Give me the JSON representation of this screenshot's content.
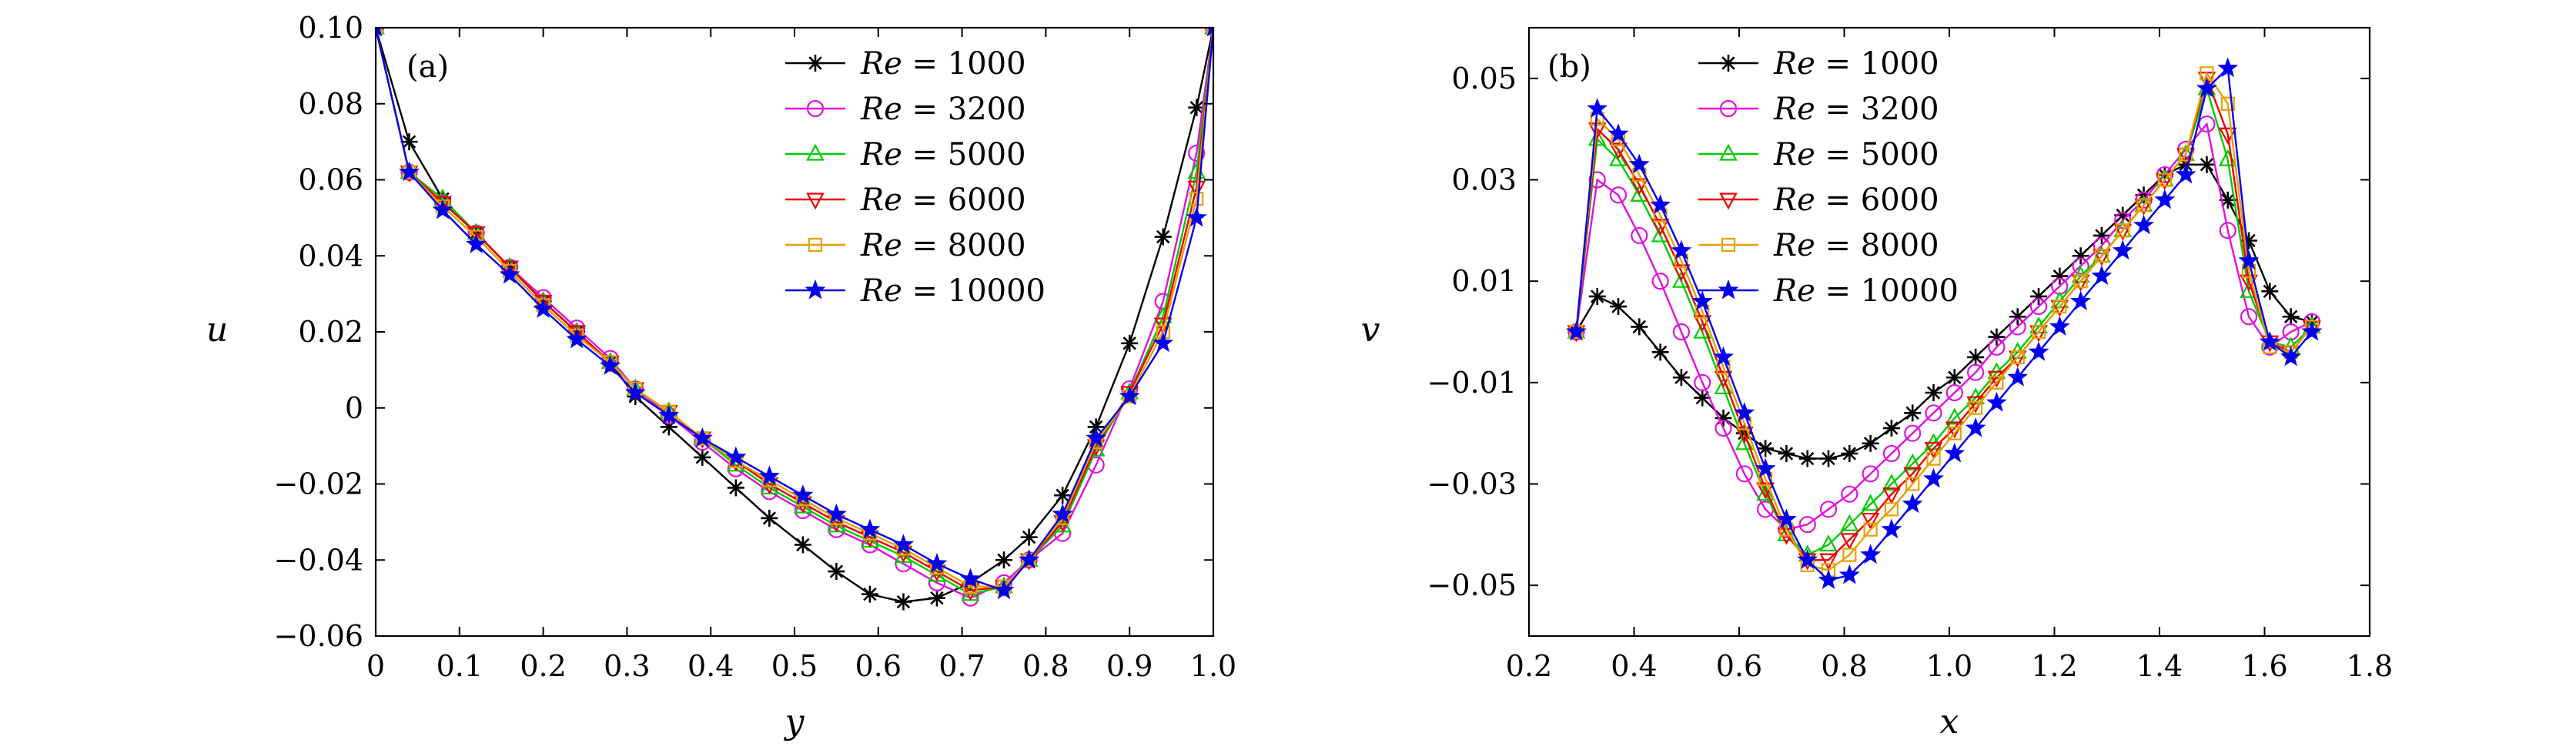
{
  "chart_data": [
    {
      "panel_label": "(a)",
      "type": "line",
      "xlabel": "y",
      "ylabel": "u",
      "xlim": [
        0,
        1.0
      ],
      "ylim": [
        -0.06,
        0.1
      ],
      "xticks": [
        0,
        0.1,
        0.2,
        0.3,
        0.4,
        0.5,
        0.6,
        0.7,
        0.8,
        0.9,
        1.0
      ],
      "xtick_labels": [
        "0",
        "0.1",
        "0.2",
        "0.3",
        "0.4",
        "0.5",
        "0.6",
        "0.7",
        "0.8",
        "0.9",
        "1.0"
      ],
      "yticks": [
        -0.06,
        -0.04,
        -0.02,
        0,
        0.02,
        0.04,
        0.06,
        0.08,
        0.1
      ],
      "ytick_labels": [
        "−0.06",
        "−0.04",
        "−0.02",
        "0",
        "0.02",
        "0.04",
        "0.06",
        "0.08",
        "0.10"
      ],
      "legend_position": "top-right",
      "series": [
        {
          "name": "Re = 1000",
          "color": "#000000",
          "marker": "asterisk",
          "x": [
            0,
            0.04,
            0.08,
            0.12,
            0.16,
            0.2,
            0.24,
            0.28,
            0.31,
            0.35,
            0.39,
            0.43,
            0.47,
            0.51,
            0.55,
            0.59,
            0.63,
            0.67,
            0.71,
            0.75,
            0.78,
            0.82,
            0.86,
            0.9,
            0.94,
            0.98,
            1.0
          ],
          "y": [
            0.1,
            0.07,
            0.055,
            0.046,
            0.037,
            0.028,
            0.02,
            0.012,
            0.003,
            -0.005,
            -0.013,
            -0.021,
            -0.029,
            -0.036,
            -0.043,
            -0.049,
            -0.051,
            -0.05,
            -0.046,
            -0.04,
            -0.034,
            -0.023,
            -0.005,
            0.017,
            0.045,
            0.079,
            0.1
          ]
        },
        {
          "name": "Re = 3200",
          "color": "#e010e0",
          "marker": "circle",
          "x": [
            0,
            0.04,
            0.08,
            0.12,
            0.16,
            0.2,
            0.24,
            0.28,
            0.31,
            0.35,
            0.39,
            0.43,
            0.47,
            0.51,
            0.55,
            0.59,
            0.63,
            0.67,
            0.71,
            0.75,
            0.78,
            0.82,
            0.86,
            0.9,
            0.94,
            0.98,
            1.0
          ],
          "y": [
            0.1,
            0.062,
            0.054,
            0.046,
            0.037,
            0.029,
            0.021,
            0.013,
            0.005,
            -0.002,
            -0.009,
            -0.016,
            -0.022,
            -0.027,
            -0.032,
            -0.036,
            -0.041,
            -0.046,
            -0.05,
            -0.046,
            -0.04,
            -0.033,
            -0.015,
            0.005,
            0.028,
            0.067,
            0.1
          ]
        },
        {
          "name": "Re = 5000",
          "color": "#00cc00",
          "marker": "triangle-up",
          "x": [
            0,
            0.04,
            0.08,
            0.12,
            0.16,
            0.2,
            0.24,
            0.28,
            0.31,
            0.35,
            0.39,
            0.43,
            0.47,
            0.51,
            0.55,
            0.59,
            0.63,
            0.67,
            0.71,
            0.75,
            0.78,
            0.82,
            0.86,
            0.9,
            0.94,
            0.98,
            1.0
          ],
          "y": [
            0.1,
            0.062,
            0.055,
            0.046,
            0.037,
            0.028,
            0.02,
            0.012,
            0.005,
            -0.001,
            -0.008,
            -0.015,
            -0.021,
            -0.026,
            -0.031,
            -0.035,
            -0.039,
            -0.044,
            -0.049,
            -0.047,
            -0.04,
            -0.031,
            -0.011,
            0.004,
            0.024,
            0.062,
            0.1
          ]
        },
        {
          "name": "Re = 6000",
          "color": "#ee0000",
          "marker": "triangle-down",
          "x": [
            0,
            0.04,
            0.08,
            0.12,
            0.16,
            0.2,
            0.24,
            0.28,
            0.31,
            0.35,
            0.39,
            0.43,
            0.47,
            0.51,
            0.55,
            0.59,
            0.63,
            0.67,
            0.71,
            0.75,
            0.78,
            0.82,
            0.86,
            0.9,
            0.94,
            0.98,
            1.0
          ],
          "y": [
            0.1,
            0.062,
            0.054,
            0.046,
            0.037,
            0.028,
            0.02,
            0.012,
            0.005,
            -0.001,
            -0.008,
            -0.014,
            -0.02,
            -0.025,
            -0.03,
            -0.034,
            -0.038,
            -0.043,
            -0.048,
            -0.047,
            -0.04,
            -0.03,
            -0.01,
            0.004,
            0.022,
            0.058,
            0.1
          ]
        },
        {
          "name": "Re = 8000",
          "color": "#e8a000",
          "marker": "square",
          "x": [
            0,
            0.04,
            0.08,
            0.12,
            0.16,
            0.2,
            0.24,
            0.28,
            0.31,
            0.35,
            0.39,
            0.43,
            0.47,
            0.51,
            0.55,
            0.59,
            0.63,
            0.67,
            0.71,
            0.75,
            0.78,
            0.82,
            0.86,
            0.9,
            0.94,
            0.98,
            1.0
          ],
          "y": [
            0.1,
            0.062,
            0.053,
            0.045,
            0.036,
            0.027,
            0.019,
            0.012,
            0.005,
            -0.001,
            -0.008,
            -0.014,
            -0.019,
            -0.024,
            -0.029,
            -0.033,
            -0.037,
            -0.042,
            -0.047,
            -0.047,
            -0.04,
            -0.029,
            -0.009,
            0.003,
            0.02,
            0.055,
            0.1
          ]
        },
        {
          "name": "Re = 10000",
          "color": "#0000ee",
          "marker": "star",
          "x": [
            0,
            0.04,
            0.08,
            0.12,
            0.16,
            0.2,
            0.24,
            0.28,
            0.31,
            0.35,
            0.39,
            0.43,
            0.47,
            0.51,
            0.55,
            0.59,
            0.63,
            0.67,
            0.71,
            0.75,
            0.78,
            0.82,
            0.86,
            0.9,
            0.94,
            0.98,
            1.0
          ],
          "y": [
            0.1,
            0.062,
            0.052,
            0.043,
            0.035,
            0.026,
            0.018,
            0.011,
            0.004,
            -0.002,
            -0.008,
            -0.013,
            -0.018,
            -0.023,
            -0.028,
            -0.032,
            -0.036,
            -0.041,
            -0.045,
            -0.048,
            -0.04,
            -0.028,
            -0.008,
            0.003,
            0.017,
            0.05,
            0.1
          ]
        }
      ]
    },
    {
      "panel_label": "(b)",
      "type": "line",
      "xlabel": "x",
      "ylabel": "v",
      "xlim": [
        0.2,
        1.8
      ],
      "ylim": [
        -0.06,
        0.06
      ],
      "xticks": [
        0.2,
        0.4,
        0.6,
        0.8,
        1.0,
        1.2,
        1.4,
        1.6,
        1.8
      ],
      "xtick_labels": [
        "0.2",
        "0.4",
        "0.6",
        "0.8",
        "1.0",
        "1.2",
        "1.4",
        "1.6",
        "1.8"
      ],
      "yticks": [
        -0.05,
        -0.03,
        -0.01,
        0.01,
        0.03,
        0.05
      ],
      "ytick_labels": [
        "−0.05",
        "−0.03",
        "−0.01",
        "0.01",
        "0.03",
        "0.05"
      ],
      "legend_position": "top-center",
      "series": [
        {
          "name": "Re = 1000",
          "color": "#000000",
          "marker": "asterisk",
          "x": [
            0.29,
            0.33,
            0.37,
            0.41,
            0.45,
            0.49,
            0.53,
            0.57,
            0.61,
            0.65,
            0.69,
            0.73,
            0.77,
            0.81,
            0.85,
            0.89,
            0.93,
            0.97,
            1.01,
            1.05,
            1.09,
            1.13,
            1.17,
            1.21,
            1.25,
            1.29,
            1.33,
            1.37,
            1.41,
            1.45,
            1.49,
            1.53,
            1.57,
            1.61,
            1.65,
            1.69
          ],
          "y": [
            0.0,
            0.007,
            0.005,
            0.001,
            -0.004,
            -0.009,
            -0.013,
            -0.017,
            -0.02,
            -0.023,
            -0.024,
            -0.025,
            -0.025,
            -0.024,
            -0.022,
            -0.019,
            -0.016,
            -0.012,
            -0.009,
            -0.005,
            -0.001,
            0.003,
            0.007,
            0.011,
            0.015,
            0.019,
            0.023,
            0.027,
            0.031,
            0.033,
            0.033,
            0.026,
            0.018,
            0.008,
            0.003,
            0.002
          ]
        },
        {
          "name": "Re = 3200",
          "color": "#e010e0",
          "marker": "circle",
          "x": [
            0.29,
            0.33,
            0.37,
            0.41,
            0.45,
            0.49,
            0.53,
            0.57,
            0.61,
            0.65,
            0.69,
            0.73,
            0.77,
            0.81,
            0.85,
            0.89,
            0.93,
            0.97,
            1.01,
            1.05,
            1.09,
            1.13,
            1.17,
            1.21,
            1.25,
            1.29,
            1.33,
            1.37,
            1.41,
            1.45,
            1.49,
            1.53,
            1.57,
            1.61,
            1.65,
            1.69
          ],
          "y": [
            0.0,
            0.03,
            0.027,
            0.019,
            0.01,
            0.0,
            -0.01,
            -0.019,
            -0.028,
            -0.035,
            -0.039,
            -0.038,
            -0.035,
            -0.032,
            -0.028,
            -0.024,
            -0.02,
            -0.016,
            -0.012,
            -0.008,
            -0.003,
            0.001,
            0.005,
            0.009,
            0.013,
            0.017,
            0.022,
            0.026,
            0.031,
            0.036,
            0.041,
            0.02,
            0.003,
            -0.003,
            0.0,
            0.002
          ]
        },
        {
          "name": "Re = 5000",
          "color": "#00cc00",
          "marker": "triangle-up",
          "x": [
            0.29,
            0.33,
            0.37,
            0.41,
            0.45,
            0.49,
            0.53,
            0.57,
            0.61,
            0.65,
            0.69,
            0.73,
            0.77,
            0.81,
            0.85,
            0.89,
            0.93,
            0.97,
            1.01,
            1.05,
            1.09,
            1.13,
            1.17,
            1.21,
            1.25,
            1.29,
            1.33,
            1.37,
            1.41,
            1.45,
            1.49,
            1.53,
            1.57,
            1.61,
            1.65,
            1.69
          ],
          "y": [
            0.0,
            0.038,
            0.034,
            0.027,
            0.019,
            0.01,
            0.0,
            -0.011,
            -0.022,
            -0.032,
            -0.04,
            -0.044,
            -0.042,
            -0.038,
            -0.034,
            -0.03,
            -0.026,
            -0.022,
            -0.017,
            -0.013,
            -0.008,
            -0.004,
            0.001,
            0.006,
            0.011,
            0.015,
            0.02,
            0.025,
            0.03,
            0.035,
            0.048,
            0.034,
            0.008,
            -0.002,
            -0.003,
            0.001
          ]
        },
        {
          "name": "Re = 6000",
          "color": "#ee0000",
          "marker": "triangle-down",
          "x": [
            0.29,
            0.33,
            0.37,
            0.41,
            0.45,
            0.49,
            0.53,
            0.57,
            0.61,
            0.65,
            0.69,
            0.73,
            0.77,
            0.81,
            0.85,
            0.89,
            0.93,
            0.97,
            1.01,
            1.05,
            1.09,
            1.13,
            1.17,
            1.21,
            1.25,
            1.29,
            1.33,
            1.37,
            1.41,
            1.45,
            1.49,
            1.53,
            1.57,
            1.61,
            1.65,
            1.69
          ],
          "y": [
            0.0,
            0.04,
            0.036,
            0.029,
            0.021,
            0.012,
            0.002,
            -0.009,
            -0.02,
            -0.031,
            -0.04,
            -0.045,
            -0.045,
            -0.041,
            -0.037,
            -0.032,
            -0.028,
            -0.023,
            -0.019,
            -0.014,
            -0.009,
            -0.005,
            0.0,
            0.005,
            0.01,
            0.015,
            0.02,
            0.025,
            0.03,
            0.035,
            0.05,
            0.039,
            0.01,
            -0.002,
            -0.004,
            0.001
          ]
        },
        {
          "name": "Re = 8000",
          "color": "#e8a000",
          "marker": "square",
          "x": [
            0.29,
            0.33,
            0.37,
            0.41,
            0.45,
            0.49,
            0.53,
            0.57,
            0.61,
            0.65,
            0.69,
            0.73,
            0.77,
            0.81,
            0.85,
            0.89,
            0.93,
            0.97,
            1.01,
            1.05,
            1.09,
            1.13,
            1.17,
            1.21,
            1.25,
            1.29,
            1.33,
            1.37,
            1.41,
            1.45,
            1.49,
            1.53,
            1.57,
            1.61,
            1.65,
            1.69
          ],
          "y": [
            0.0,
            0.042,
            0.038,
            0.031,
            0.023,
            0.014,
            0.004,
            -0.007,
            -0.018,
            -0.029,
            -0.039,
            -0.046,
            -0.047,
            -0.044,
            -0.039,
            -0.035,
            -0.03,
            -0.025,
            -0.02,
            -0.015,
            -0.01,
            -0.005,
            0.0,
            0.005,
            0.01,
            0.015,
            0.02,
            0.025,
            0.03,
            0.035,
            0.051,
            0.045,
            0.012,
            -0.003,
            -0.004,
            0.001
          ]
        },
        {
          "name": "Re = 10000",
          "color": "#0000ee",
          "marker": "star",
          "x": [
            0.29,
            0.33,
            0.37,
            0.41,
            0.45,
            0.49,
            0.53,
            0.57,
            0.61,
            0.65,
            0.69,
            0.73,
            0.77,
            0.81,
            0.85,
            0.89,
            0.93,
            0.97,
            1.01,
            1.05,
            1.09,
            1.13,
            1.17,
            1.21,
            1.25,
            1.29,
            1.33,
            1.37,
            1.41,
            1.45,
            1.49,
            1.53,
            1.57,
            1.61,
            1.65,
            1.69
          ],
          "y": [
            0.0,
            0.044,
            0.039,
            0.033,
            0.025,
            0.016,
            0.006,
            -0.005,
            -0.016,
            -0.027,
            -0.037,
            -0.045,
            -0.049,
            -0.048,
            -0.044,
            -0.039,
            -0.034,
            -0.029,
            -0.024,
            -0.019,
            -0.014,
            -0.009,
            -0.004,
            0.001,
            0.006,
            0.011,
            0.016,
            0.021,
            0.026,
            0.031,
            0.048,
            0.052,
            0.014,
            -0.002,
            -0.005,
            0.0
          ]
        }
      ]
    }
  ]
}
